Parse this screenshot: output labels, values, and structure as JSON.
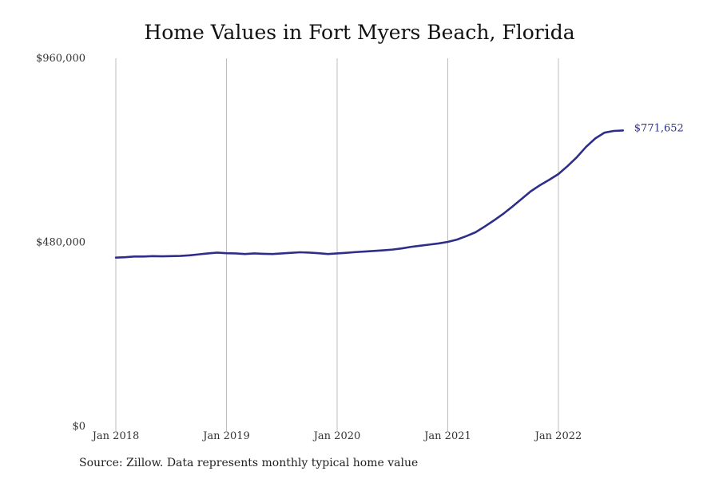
{
  "chart_data": {
    "type": "line",
    "title": "Home Values in Fort Myers Beach, Florida",
    "source": "Source: Zillow. Data represents monthly typical home value",
    "ylim": [
      0,
      960000
    ],
    "y_ticks": [
      {
        "value": 0,
        "label": "$0"
      },
      {
        "value": 480000,
        "label": "$480,000"
      },
      {
        "value": 960000,
        "label": "$960,000"
      }
    ],
    "xlim": [
      "2018-01",
      "2022-12"
    ],
    "x_ticks": [
      {
        "date": "2018-01",
        "label": "Jan 2018"
      },
      {
        "date": "2019-01",
        "label": "Jan 2019"
      },
      {
        "date": "2020-01",
        "label": "Jan 2020"
      },
      {
        "date": "2021-01",
        "label": "Jan 2021"
      },
      {
        "date": "2022-01",
        "label": "Jan 2022"
      }
    ],
    "grid": "vertical",
    "line_color": "#2e2e8a",
    "end_label": "$771,652",
    "series": [
      {
        "points": [
          [
            "2018-01",
            440000
          ],
          [
            "2018-02",
            441000
          ],
          [
            "2018-03",
            443000
          ],
          [
            "2018-04",
            443000
          ],
          [
            "2018-05",
            444000
          ],
          [
            "2018-06",
            443500
          ],
          [
            "2018-07",
            444000
          ],
          [
            "2018-08",
            444500
          ],
          [
            "2018-09",
            446000
          ],
          [
            "2018-10",
            448500
          ],
          [
            "2018-11",
            451000
          ],
          [
            "2018-12",
            453000
          ],
          [
            "2019-01",
            451500
          ],
          [
            "2019-02",
            451000
          ],
          [
            "2019-03",
            449500
          ],
          [
            "2019-04",
            451000
          ],
          [
            "2019-05",
            450000
          ],
          [
            "2019-06",
            449500
          ],
          [
            "2019-07",
            451000
          ],
          [
            "2019-08",
            452500
          ],
          [
            "2019-09",
            454000
          ],
          [
            "2019-10",
            453000
          ],
          [
            "2019-11",
            451500
          ],
          [
            "2019-12",
            449500
          ],
          [
            "2020-01",
            451000
          ],
          [
            "2020-02",
            452500
          ],
          [
            "2020-03",
            454500
          ],
          [
            "2020-04",
            456000
          ],
          [
            "2020-05",
            457500
          ],
          [
            "2020-06",
            459000
          ],
          [
            "2020-07",
            461000
          ],
          [
            "2020-08",
            464000
          ],
          [
            "2020-09",
            468000
          ],
          [
            "2020-10",
            471000
          ],
          [
            "2020-11",
            474000
          ],
          [
            "2020-12",
            477000
          ],
          [
            "2021-01",
            481000
          ],
          [
            "2021-02",
            487000
          ],
          [
            "2021-03",
            496000
          ],
          [
            "2021-04",
            506000
          ],
          [
            "2021-05",
            521000
          ],
          [
            "2021-06",
            537000
          ],
          [
            "2021-07",
            554000
          ],
          [
            "2021-08",
            573000
          ],
          [
            "2021-09",
            593000
          ],
          [
            "2021-10",
            613000
          ],
          [
            "2021-11",
            629000
          ],
          [
            "2021-12",
            643000
          ],
          [
            "2022-01",
            658000
          ],
          [
            "2022-02",
            679000
          ],
          [
            "2022-03",
            702000
          ],
          [
            "2022-04",
            729000
          ],
          [
            "2022-05",
            751000
          ],
          [
            "2022-06",
            766000
          ],
          [
            "2022-07",
            770500
          ],
          [
            "2022-08",
            771652
          ]
        ]
      }
    ]
  }
}
